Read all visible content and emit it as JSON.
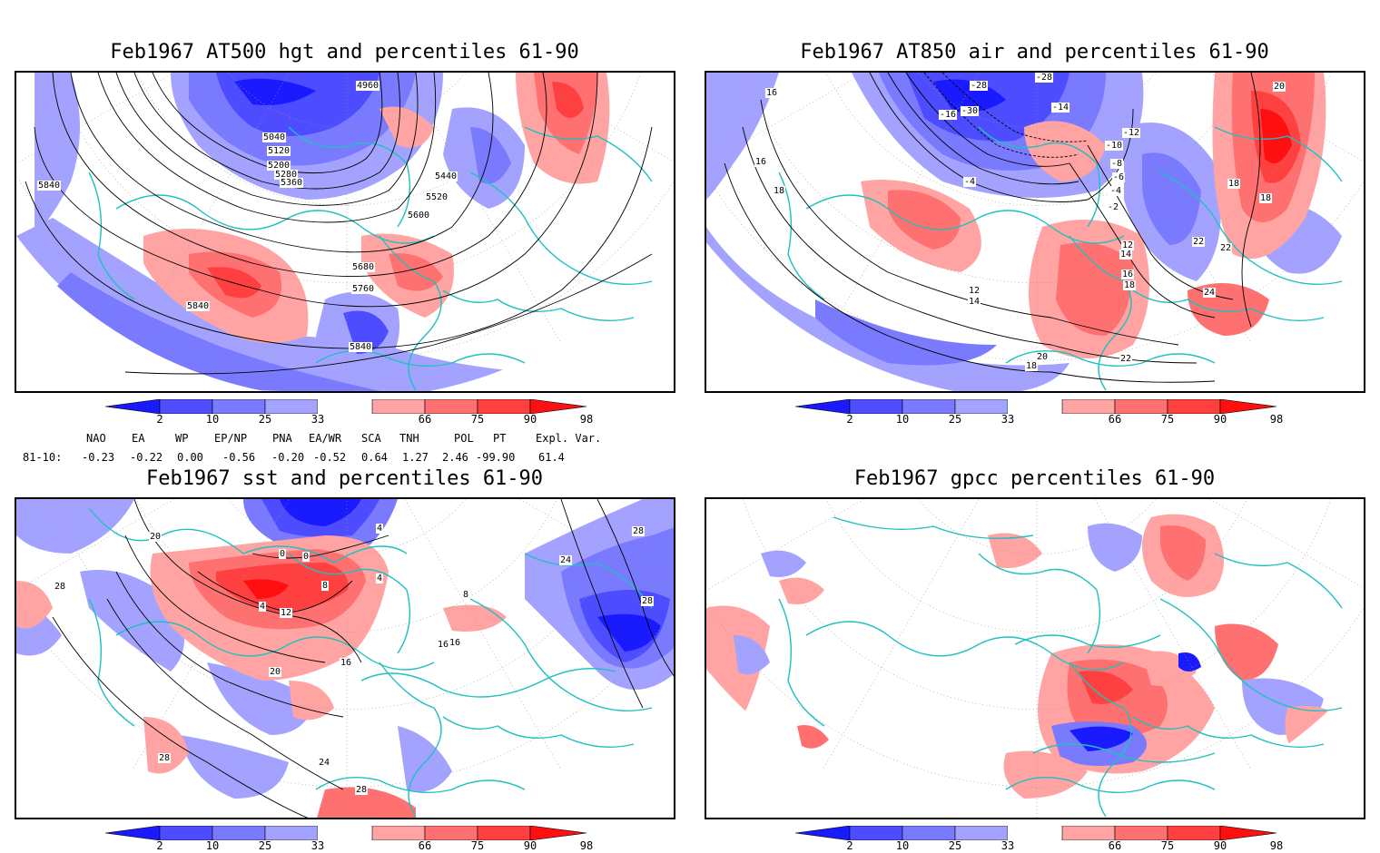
{
  "colors": {
    "blue_dark": "#1a1aff",
    "blue_mid": "#4d4dff",
    "blue_light": "#7a7aff",
    "blue_pale": "#a3a3ff",
    "red_pale": "#ffa3a3",
    "red_light": "#ff7070",
    "red_mid": "#ff4040",
    "red_dark": "#ff1010",
    "coast": "#20c0c0",
    "contour": "#000000"
  },
  "colorbar": {
    "ticks": [
      "2",
      "10",
      "25",
      "33",
      "66",
      "75",
      "90",
      "98"
    ]
  },
  "panels": [
    {
      "title": "Feb1967 AT500 hgt and percentiles 61-90",
      "contour_labels": [
        "4960",
        "5040",
        "5120",
        "5200",
        "5280",
        "5360",
        "5440",
        "5520",
        "5600",
        "5680",
        "5760",
        "5840",
        "5840",
        "5840"
      ]
    },
    {
      "title": "Feb1967 AT850 air and percentiles 61-90",
      "contour_labels": [
        "-28",
        "-28",
        "-30",
        "-14",
        "-12",
        "-10",
        "-8",
        "-6",
        "-4",
        "-2",
        "16",
        "16",
        "18",
        "18",
        "18",
        "20",
        "22",
        "24",
        "22",
        "12",
        "14",
        "16",
        "18",
        "22",
        "20",
        "18",
        "-16",
        "-4",
        "12",
        "14"
      ]
    },
    {
      "title": "Feb1967 sst and percentiles 61-90",
      "contour_labels": [
        "28",
        "20",
        "0",
        "4",
        "8",
        "0",
        "4",
        "4",
        "12",
        "16",
        "20",
        "24",
        "28",
        "28",
        "28",
        "24",
        "8",
        "16",
        "16",
        "28"
      ]
    },
    {
      "title": "Feb1967 gpcc percentiles 61-90",
      "contour_labels": []
    }
  ],
  "indices": {
    "header": [
      "NAO",
      "EA",
      "WP",
      "EP/NP",
      "PNA",
      "EA/WR",
      "SCA",
      "TNH",
      "POL",
      "PT",
      "Expl. Var."
    ],
    "row_label": "81-10:",
    "values": [
      "-0.23",
      "-0.22",
      "0.00",
      "-0.56",
      "-0.20",
      "-0.52",
      "0.64",
      "1.27",
      "2.46",
      "-99.90",
      "61.4"
    ]
  }
}
